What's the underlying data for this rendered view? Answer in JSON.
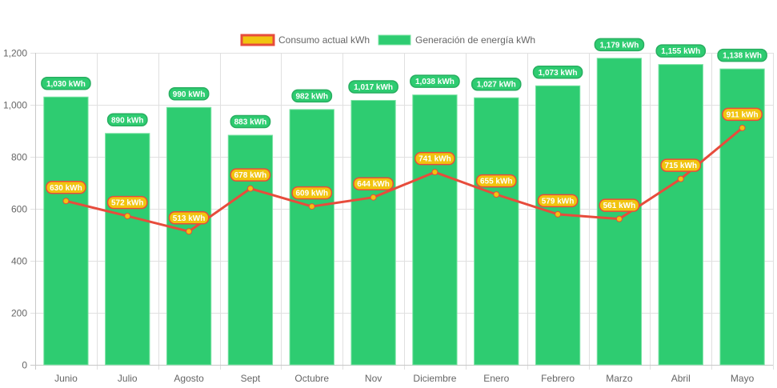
{
  "chart_data": {
    "type": "bar",
    "title": "",
    "xlabel": "",
    "ylabel": "",
    "ylim": [
      0,
      1200
    ],
    "yticks": [
      0,
      200,
      400,
      600,
      800,
      1000,
      1200
    ],
    "ytick_labels": [
      "0",
      "200",
      "400",
      "600",
      "800",
      "1,000",
      "1,200"
    ],
    "grid": true,
    "legend_position": "top-center",
    "categories": [
      "Junio",
      "Julio",
      "Agosto",
      "Sept",
      "Octubre",
      "Nov",
      "Diciembre",
      "Enero",
      "Febrero",
      "Marzo",
      "Abril",
      "Mayo"
    ],
    "series": [
      {
        "name": "Consumo actual kWh",
        "type": "line",
        "color": "#e74c3c",
        "fill_color": "#f1c40f",
        "values": [
          630,
          572,
          513,
          678,
          609,
          644,
          741,
          655,
          579,
          561,
          715,
          911
        ],
        "labels": [
          "630 kWh",
          "572 kWh",
          "513 kWh",
          "678 kWh",
          "609 kWh",
          "644 kWh",
          "741 kWh",
          "655 kWh",
          "579 kWh",
          "561 kWh",
          "715 kWh",
          "911 kWh"
        ]
      },
      {
        "name": "Generación de energía kWh",
        "type": "bar",
        "color": "#2ecc71",
        "values": [
          1030,
          890,
          990,
          883,
          982,
          1017,
          1038,
          1027,
          1073,
          1179,
          1155,
          1138
        ],
        "labels": [
          "1,030 kWh",
          "890 kWh",
          "990 kWh",
          "883 kWh",
          "982 kWh",
          "1,017 kWh",
          "1,038 kWh",
          "1,027 kWh",
          "1,073 kWh",
          "1,179 kWh",
          "1,155 kWh",
          "1,138 kWh"
        ]
      }
    ]
  }
}
